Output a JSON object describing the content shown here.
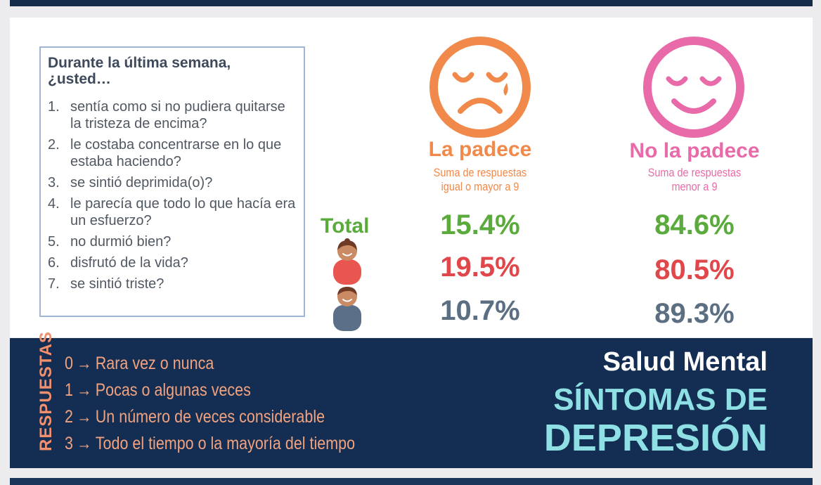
{
  "question_box": {
    "title": "Durante la última semana, ¿usted…",
    "items": [
      {
        "num": "1.",
        "text": "sentía como si no pudiera quitarse la tristeza de encima?"
      },
      {
        "num": "2.",
        "text": "le costaba concentrarse en lo que estaba haciendo?"
      },
      {
        "num": "3.",
        "text": "se sintió deprimida(o)?"
      },
      {
        "num": "4.",
        "text": "le parecía que todo lo que hacía era un esfuerzo?"
      },
      {
        "num": "5.",
        "text": "no durmió bien?"
      },
      {
        "num": "6.",
        "text": "disfrutó de la vida?"
      },
      {
        "num": "7.",
        "text": "se sintió triste?"
      }
    ]
  },
  "columns": {
    "suffers": {
      "title": "La padece",
      "subtitle_line1": "Suma de respuestas",
      "subtitle_line2": "igual o mayor a 9",
      "icon": "sad-face-icon",
      "color": "#f0894a"
    },
    "not_suffers": {
      "title": "No la padece",
      "subtitle_line1": "Suma de respuestas",
      "subtitle_line2": "menor a 9",
      "icon": "happy-face-icon",
      "color": "#e86aa8"
    }
  },
  "rows": {
    "total_label": "Total",
    "total": {
      "suffers": "15.4%",
      "not_suffers": "84.6%"
    },
    "women": {
      "suffers": "19.5%",
      "not_suffers": "80.5%",
      "icon": "woman-icon"
    },
    "men": {
      "suffers": "10.7%",
      "not_suffers": "89.3%",
      "icon": "man-icon"
    }
  },
  "footer": {
    "responses_label": "RESPUESTAS",
    "scale": [
      {
        "value": "0",
        "label": "Rara vez o nunca"
      },
      {
        "value": "1",
        "label": "Pocas o algunas veces"
      },
      {
        "value": "2",
        "label": "Un número de veces considerable"
      },
      {
        "value": "3",
        "label": "Todo el tiempo o la mayoría del tiempo"
      }
    ],
    "arrow": "→",
    "brand_subtitle": "Salud Mental",
    "brand_line1": "SÍNTOMAS DE",
    "brand_line2": "DEPRESIÓN"
  },
  "colors": {
    "navy": "#132e52",
    "green": "#5aaa3c",
    "red": "#e0474b",
    "slate": "#5b6e82",
    "teal": "#8ee0e4",
    "peach": "#f2a27e"
  }
}
